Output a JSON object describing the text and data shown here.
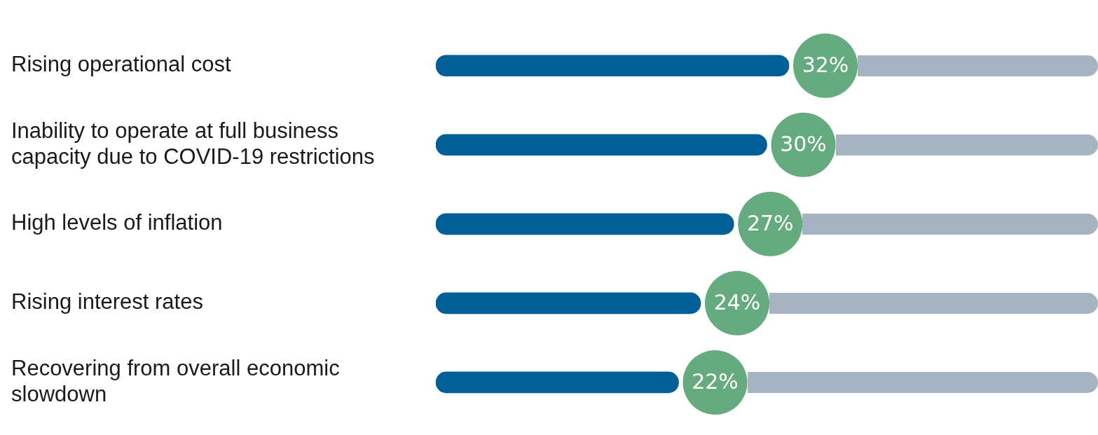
{
  "chart_data": {
    "type": "bar",
    "orientation": "horizontal",
    "categories": [
      "Rising operational cost",
      "Inability to operate at full business capacity due to COVID-19 restrictions",
      "High levels of inflation",
      "Rising interest rates",
      "Recovering from overall economic slowdown"
    ],
    "values": [
      32,
      30,
      27,
      24,
      22
    ],
    "color": "#005f96",
    "value_labels": [
      "32%",
      "30%",
      "27%",
      "24%",
      "22%"
    ],
    "tick_labels": "y",
    "legend": false
  }
}
